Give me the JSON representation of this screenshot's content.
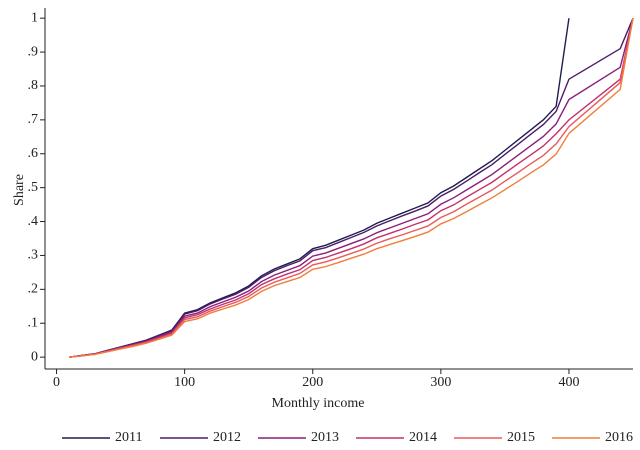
{
  "chart_data": {
    "type": "line",
    "xlabel": "Monthly income",
    "ylabel": "Share",
    "x": [
      10,
      20,
      30,
      40,
      50,
      60,
      70,
      80,
      90,
      100,
      110,
      120,
      130,
      140,
      150,
      160,
      170,
      180,
      190,
      200,
      210,
      220,
      230,
      240,
      250,
      260,
      270,
      280,
      290,
      300,
      310,
      320,
      330,
      340,
      350,
      360,
      370,
      380,
      390,
      400,
      440,
      450
    ],
    "series": [
      {
        "name": "2011",
        "color": "#1f1d4f",
        "values": [
          0,
          0.005,
          0.01,
          0.02,
          0.03,
          0.04,
          0.05,
          0.065,
          0.08,
          0.13,
          0.14,
          0.16,
          0.175,
          0.19,
          0.21,
          0.24,
          0.26,
          0.275,
          0.29,
          0.32,
          0.33,
          0.345,
          0.36,
          0.375,
          0.395,
          0.41,
          0.425,
          0.44,
          0.455,
          0.485,
          0.505,
          0.53,
          0.555,
          0.58,
          0.61,
          0.64,
          0.67,
          0.7,
          0.74,
          1.0,
          null,
          null
        ]
      },
      {
        "name": "2012",
        "color": "#4b1c6c",
        "values": [
          0,
          0.005,
          0.01,
          0.02,
          0.029,
          0.039,
          0.049,
          0.064,
          0.078,
          0.127,
          0.137,
          0.157,
          0.172,
          0.186,
          0.206,
          0.235,
          0.255,
          0.27,
          0.284,
          0.314,
          0.323,
          0.338,
          0.353,
          0.368,
          0.387,
          0.402,
          0.417,
          0.431,
          0.446,
          0.475,
          0.495,
          0.519,
          0.544,
          0.568,
          0.598,
          0.627,
          0.657,
          0.686,
          0.725,
          0.82,
          0.91,
          1.0
        ]
      },
      {
        "name": "2013",
        "color": "#8a1e7c",
        "values": [
          0,
          0.005,
          0.009,
          0.019,
          0.028,
          0.037,
          0.047,
          0.06,
          0.074,
          0.121,
          0.13,
          0.149,
          0.163,
          0.177,
          0.195,
          0.223,
          0.242,
          0.256,
          0.27,
          0.298,
          0.307,
          0.321,
          0.335,
          0.349,
          0.367,
          0.381,
          0.395,
          0.409,
          0.423,
          0.451,
          0.47,
          0.493,
          0.516,
          0.539,
          0.567,
          0.595,
          0.623,
          0.651,
          0.688,
          0.76,
          0.855,
          1.0
        ]
      },
      {
        "name": "2014",
        "color": "#c3306d",
        "values": [
          0,
          0.004,
          0.009,
          0.018,
          0.027,
          0.036,
          0.045,
          0.058,
          0.071,
          0.116,
          0.125,
          0.142,
          0.156,
          0.169,
          0.187,
          0.214,
          0.231,
          0.245,
          0.258,
          0.285,
          0.294,
          0.307,
          0.32,
          0.334,
          0.352,
          0.365,
          0.378,
          0.392,
          0.405,
          0.432,
          0.449,
          0.472,
          0.494,
          0.516,
          0.543,
          0.57,
          0.596,
          0.623,
          0.659,
          0.7,
          0.82,
          1.0
        ]
      },
      {
        "name": "2015",
        "color": "#e75a5c",
        "values": [
          0,
          0.004,
          0.009,
          0.017,
          0.026,
          0.034,
          0.043,
          0.055,
          0.068,
          0.111,
          0.119,
          0.136,
          0.149,
          0.162,
          0.179,
          0.204,
          0.221,
          0.234,
          0.247,
          0.272,
          0.281,
          0.293,
          0.306,
          0.319,
          0.336,
          0.349,
          0.361,
          0.374,
          0.387,
          0.412,
          0.429,
          0.451,
          0.472,
          0.493,
          0.519,
          0.544,
          0.57,
          0.595,
          0.629,
          0.68,
          0.81,
          1.0
        ]
      },
      {
        "name": "2016",
        "color": "#f27c3b",
        "values": [
          0,
          0.004,
          0.008,
          0.016,
          0.024,
          0.032,
          0.041,
          0.053,
          0.065,
          0.105,
          0.113,
          0.13,
          0.142,
          0.154,
          0.17,
          0.194,
          0.211,
          0.223,
          0.235,
          0.259,
          0.267,
          0.279,
          0.292,
          0.304,
          0.32,
          0.332,
          0.344,
          0.356,
          0.369,
          0.393,
          0.409,
          0.429,
          0.45,
          0.47,
          0.494,
          0.518,
          0.543,
          0.567,
          0.599,
          0.66,
          0.79,
          1.0
        ]
      }
    ],
    "xlim": [
      -9,
      450
    ],
    "ylim": [
      -0.035,
      1.03
    ],
    "xticks": [
      0,
      100,
      200,
      300,
      400
    ],
    "yticks": [
      0,
      {
        "value": 0.1,
        "label": ".1"
      },
      {
        "value": 0.2,
        "label": ".2"
      },
      {
        "value": 0.3,
        "label": ".3"
      },
      {
        "value": 0.4,
        "label": ".4"
      },
      {
        "value": 0.5,
        "label": ".5"
      },
      {
        "value": 0.6,
        "label": ".6"
      },
      {
        "value": 0.7,
        "label": ".7"
      },
      {
        "value": 0.8,
        "label": ".8"
      },
      {
        "value": 0.9,
        "label": ".9"
      },
      1
    ],
    "legend": "bottom"
  }
}
